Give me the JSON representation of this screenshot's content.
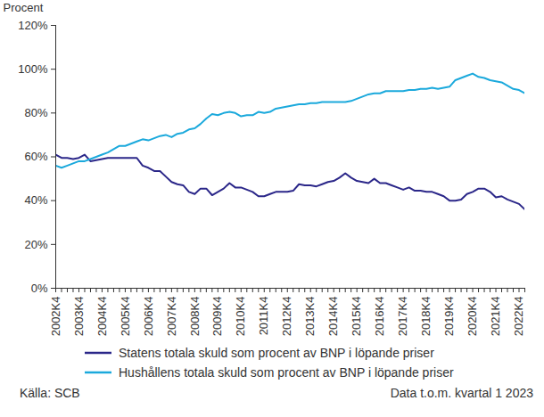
{
  "chart_data": {
    "type": "line",
    "y_label": "Procent",
    "source": "Källa: SCB",
    "footnote": "Data t.o.m. kvartal 1 2023",
    "categories": [
      "2002K4",
      null,
      null,
      null,
      "2003K4",
      null,
      null,
      null,
      "2004K4",
      null,
      null,
      null,
      "2005K4",
      null,
      null,
      null,
      "2006K4",
      null,
      null,
      null,
      "2007K4",
      null,
      null,
      null,
      "2008K4",
      null,
      null,
      null,
      "2009K4",
      null,
      null,
      null,
      "2010K4",
      null,
      null,
      null,
      "2011K4",
      null,
      null,
      null,
      "2012K4",
      null,
      null,
      null,
      "2013K4",
      null,
      null,
      null,
      "2014K4",
      null,
      null,
      null,
      "2015K4",
      null,
      null,
      null,
      "2016K4",
      null,
      null,
      null,
      "2017K4",
      null,
      null,
      null,
      "2018K4",
      null,
      null,
      null,
      "2019K4",
      null,
      null,
      null,
      "2020K4",
      null,
      null,
      null,
      "2021K4",
      null,
      null,
      null,
      "2022K4",
      null
    ],
    "series": [
      {
        "name": "Statens totala skuld som procent av BNP i löpande priser",
        "color": "#2b2789",
        "values": [
          61,
          59.5,
          59.5,
          59,
          59.5,
          61,
          58,
          58.5,
          59,
          59.5,
          59.5,
          59.5,
          59.5,
          59.5,
          59.5,
          56,
          55,
          53.5,
          53.5,
          51,
          48.5,
          47.5,
          47,
          44,
          43,
          45.5,
          45.5,
          42.5,
          44,
          45.5,
          48,
          46,
          46,
          45,
          44,
          42,
          42,
          43,
          44,
          44,
          44,
          44.5,
          47.5,
          47,
          47,
          46.5,
          47.5,
          48.5,
          49,
          50.5,
          52.5,
          50.5,
          49,
          48.5,
          48,
          50,
          48,
          48,
          47,
          46,
          45,
          46,
          44.5,
          44.5,
          44,
          44,
          43,
          42,
          40,
          40,
          40.5,
          43,
          44,
          45.5,
          45.5,
          44,
          41.5,
          42,
          40.5,
          39.5,
          38.5,
          36
        ]
      },
      {
        "name": "Hushållens totala skuld som procent av BNP i löpande priser",
        "color": "#1ba9dc",
        "values": [
          56,
          55,
          56,
          57,
          58,
          58,
          59,
          60,
          61,
          62,
          63.5,
          65,
          65,
          66,
          67,
          68,
          67.5,
          68.5,
          69.5,
          70,
          69,
          70.5,
          71,
          72.5,
          73,
          75,
          77.5,
          79.5,
          79,
          80,
          80.5,
          80,
          78.5,
          79,
          79,
          80.5,
          80,
          80.5,
          82,
          82.5,
          83,
          83.5,
          84,
          84,
          84.5,
          84.5,
          85,
          85,
          85,
          85,
          85,
          85.5,
          86.5,
          87.5,
          88.5,
          89,
          89,
          90,
          90,
          90,
          90,
          90.5,
          90.5,
          91,
          91,
          91.5,
          91,
          91.5,
          92,
          95,
          96,
          97,
          98,
          96.5,
          96,
          95,
          94.5,
          94,
          92.5,
          91,
          90.5,
          89
        ]
      }
    ],
    "ylim": [
      0,
      120
    ],
    "yticks": [
      {
        "value": 0,
        "label": "0%"
      },
      {
        "value": 20,
        "label": "20%"
      },
      {
        "value": 40,
        "label": "40%"
      },
      {
        "value": 60,
        "label": "60%"
      },
      {
        "value": 80,
        "label": "80%"
      },
      {
        "value": 100,
        "label": "100%"
      },
      {
        "value": 120,
        "label": "120%"
      }
    ],
    "grid": false,
    "legend": "bottom"
  }
}
